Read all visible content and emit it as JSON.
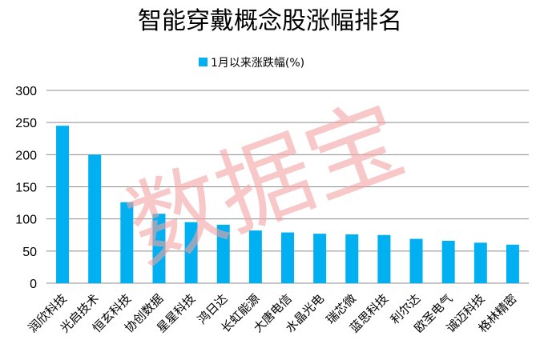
{
  "chart_data": {
    "type": "bar",
    "title": "智能穿戴概念股涨幅排名",
    "legend": {
      "position": "top",
      "entries": [
        "1月以来涨跌幅(%)"
      ]
    },
    "categories": [
      "润欣科技",
      "光启技术",
      "恒玄科技",
      "协创数据",
      "星星科技",
      "鸿日达",
      "长虹能源",
      "大唐电信",
      "水晶光电",
      "瑞芯微",
      "蓝思科技",
      "利尔达",
      "欧圣电气",
      "诚迈科技",
      "格林精密"
    ],
    "series": [
      {
        "name": "1月以来涨跌幅(%)",
        "values": [
          245,
          200,
          126,
          108,
          95,
          91,
          82,
          79,
          77,
          76,
          75,
          69,
          66,
          63,
          60
        ]
      }
    ],
    "ylim": [
      0,
      300
    ],
    "yticks": [
      0,
      50,
      100,
      150,
      200,
      250,
      300
    ],
    "grid": true,
    "colors": {
      "bar": "#00b0f0",
      "grid": "#8c8c8c"
    }
  },
  "watermark": "数据宝"
}
